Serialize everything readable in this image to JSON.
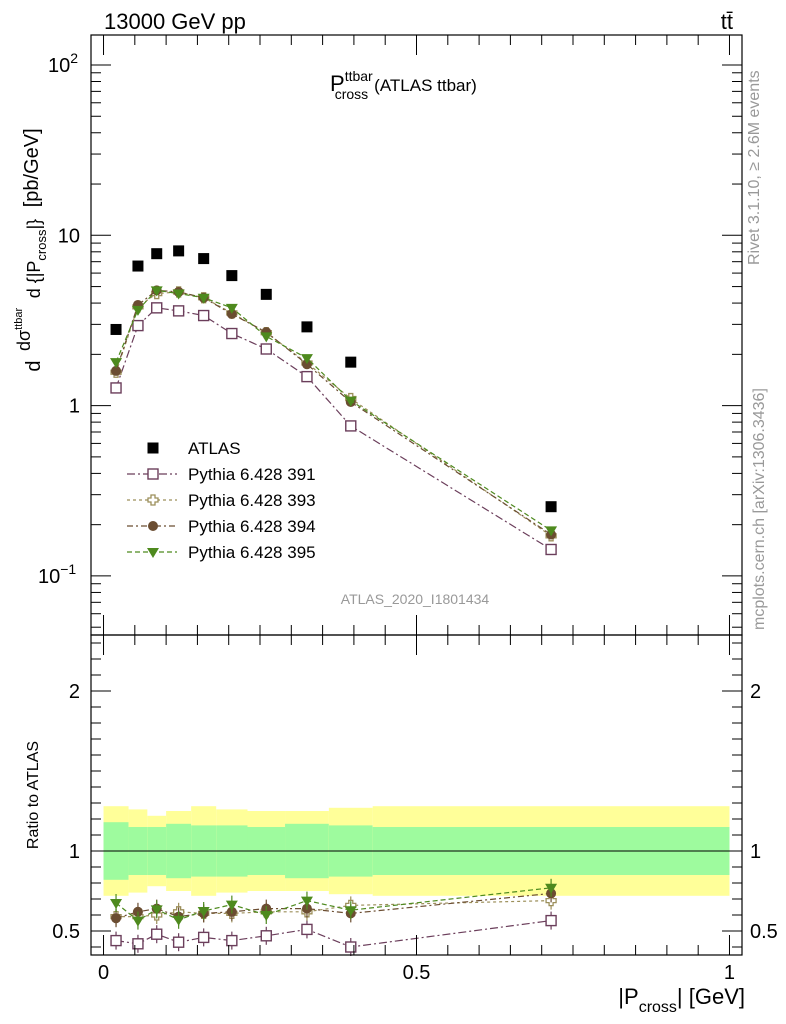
{
  "header": {
    "energy_label": "13000 GeV pp",
    "process_label": "tt̄"
  },
  "side_labels": {
    "rivet": "Rivet 3.1.10, ≥ 2.6M events",
    "mcplots": "mcplots.cern.ch [arXiv:1306.3436]"
  },
  "chart_data": {
    "type": "scatter",
    "title_main": "P",
    "title_sup": "ttbar",
    "title_sub": "cross",
    "title_suffix": "(ATLAS ttbar)",
    "analysis_tag": "ATLAS_2020_I1801434",
    "ylabel_parts": {
      "d1": "d",
      "dsig": "dσ",
      "sup": "ttbar",
      "den": "d {|P",
      "den_sub": "cross",
      "den_end": "|}",
      "units": "[pb/GeV]"
    },
    "xlabel_parts": {
      "pre": "|P",
      "sub": "cross",
      "post": "| [GeV]"
    },
    "ratio_ylabel": "Ratio to ATLAS",
    "main_scale": "log",
    "main_ylim": [
      0.045,
      150
    ],
    "main_yticks": [
      {
        "value": 0.1,
        "base": "10",
        "exp": "−1"
      },
      {
        "value": 1,
        "base": "1",
        "exp": ""
      },
      {
        "value": 10,
        "base": "10",
        "exp": ""
      },
      {
        "value": 100,
        "base": "10",
        "exp": "2"
      }
    ],
    "xlim": [
      -0.02,
      1.02
    ],
    "xticks": [
      {
        "value": 0,
        "label": "0"
      },
      {
        "value": 0.5,
        "label": "0.5"
      },
      {
        "value": 1,
        "label": "1"
      }
    ],
    "ratio_ylim": [
      0.35,
      2.35
    ],
    "ratio_yticks": [
      {
        "value": 0.5,
        "label": "0.5"
      },
      {
        "value": 1,
        "label": "1"
      },
      {
        "value": 2,
        "label": "2"
      }
    ],
    "bins": [
      0.0,
      0.04,
      0.07,
      0.1,
      0.14,
      0.18,
      0.23,
      0.29,
      0.36,
      0.43,
      1.0
    ],
    "x": [
      0.02,
      0.055,
      0.085,
      0.12,
      0.16,
      0.205,
      0.26,
      0.325,
      0.395,
      0.715
    ],
    "data": {
      "name": "ATLAS",
      "values": [
        2.8,
        6.6,
        7.8,
        8.1,
        7.3,
        5.8,
        4.5,
        2.9,
        1.8,
        0.255
      ],
      "band_inner": [
        0.18,
        0.15,
        0.15,
        0.17,
        0.16,
        0.16,
        0.15,
        0.17,
        0.16,
        0.15
      ],
      "band_outer": [
        0.28,
        0.26,
        0.22,
        0.25,
        0.28,
        0.26,
        0.25,
        0.25,
        0.27,
        0.28
      ]
    },
    "series": [
      {
        "name": "Pythia 6.428 391",
        "color": "#6b3e5b",
        "marker": "open-square",
        "dash": "8 3 2 3",
        "values": [
          1.27,
          2.95,
          3.75,
          3.6,
          3.38,
          2.65,
          2.15,
          1.48,
          0.76,
          0.143
        ],
        "ratio": [
          0.44,
          0.42,
          0.48,
          0.43,
          0.46,
          0.44,
          0.47,
          0.51,
          0.4,
          0.565
        ]
      },
      {
        "name": "Pythia 6.428 393",
        "color": "#9c8f5a",
        "marker": "open-cross",
        "dash": "3 3",
        "values": [
          1.57,
          3.8,
          4.55,
          4.65,
          4.3,
          3.5,
          2.68,
          1.78,
          1.1,
          0.172
        ],
        "ratio": [
          0.59,
          0.59,
          0.6,
          0.62,
          0.61,
          0.61,
          0.62,
          0.62,
          0.66,
          0.69
        ]
      },
      {
        "name": "Pythia 6.428 394",
        "color": "#6b4d31",
        "marker": "filled-circle",
        "dash": "6 3 2 3",
        "values": [
          1.6,
          3.9,
          4.75,
          4.65,
          4.3,
          3.45,
          2.7,
          1.75,
          1.05,
          0.175
        ],
        "ratio": [
          0.58,
          0.62,
          0.64,
          0.59,
          0.61,
          0.62,
          0.64,
          0.64,
          0.61,
          0.735
        ]
      },
      {
        "name": "Pythia 6.428 395",
        "color": "#4e8a1e",
        "marker": "filled-triangle",
        "dash": "5 3",
        "values": [
          1.8,
          3.65,
          4.75,
          4.55,
          4.3,
          3.75,
          2.55,
          1.9,
          1.07,
          0.185
        ],
        "ratio": [
          0.675,
          0.565,
          0.635,
          0.57,
          0.625,
          0.665,
          0.6,
          0.69,
          0.63,
          0.77
        ]
      }
    ],
    "band_colors": {
      "inner": "#9efb9e",
      "outer": "#ffff99"
    }
  }
}
